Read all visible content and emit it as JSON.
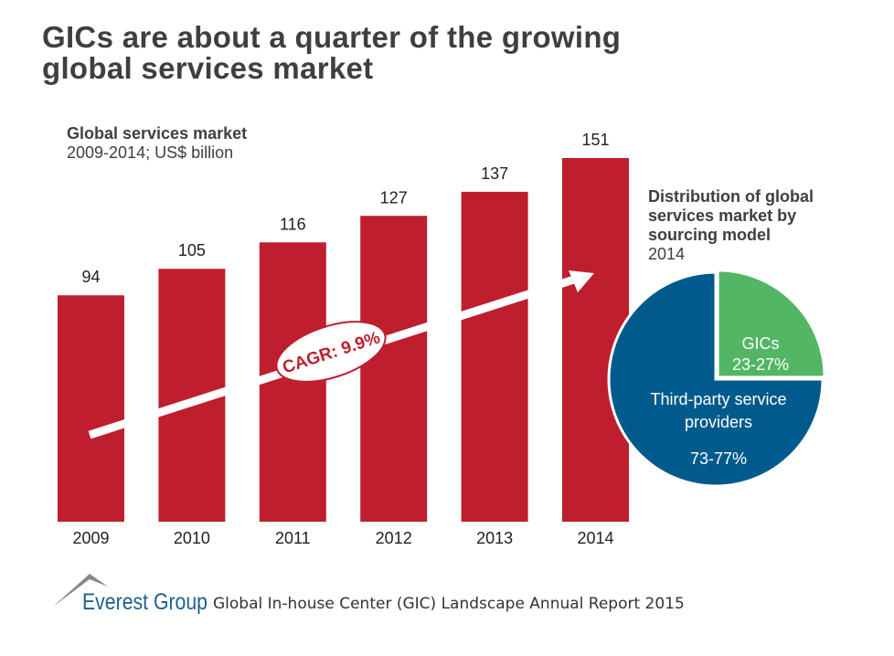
{
  "title_line1": "GICs are about a quarter of the growing",
  "title_line2": "global services market",
  "chart_data": [
    {
      "type": "bar",
      "title": "Global services market",
      "subtitle": "2009-2014; US$ billion",
      "categories": [
        "2009",
        "2010",
        "2011",
        "2012",
        "2013",
        "2014"
      ],
      "values": [
        94,
        105,
        116,
        127,
        137,
        151
      ],
      "annotation": "CAGR: 9.9%",
      "color": "#be1e2d",
      "ylim": [
        0,
        151
      ]
    },
    {
      "type": "pie",
      "title": "Distribution of global services market by sourcing model",
      "title_lines": [
        "Distribution of global",
        "services market by",
        "sourcing model"
      ],
      "subtitle": "2014",
      "slices": [
        {
          "label": "GICs",
          "value_label": "23-27%",
          "value": 25,
          "color": "#52b665"
        },
        {
          "label": "Third-party service providers",
          "label_lines": [
            "Third-party service",
            "providers"
          ],
          "value_label": "73-77%",
          "value": 75,
          "color": "#005a8c"
        }
      ]
    }
  ],
  "footer": {
    "brand": "Everest Group",
    "source": "Global In-house Center (GIC) Landscape Annual Report 2015"
  }
}
